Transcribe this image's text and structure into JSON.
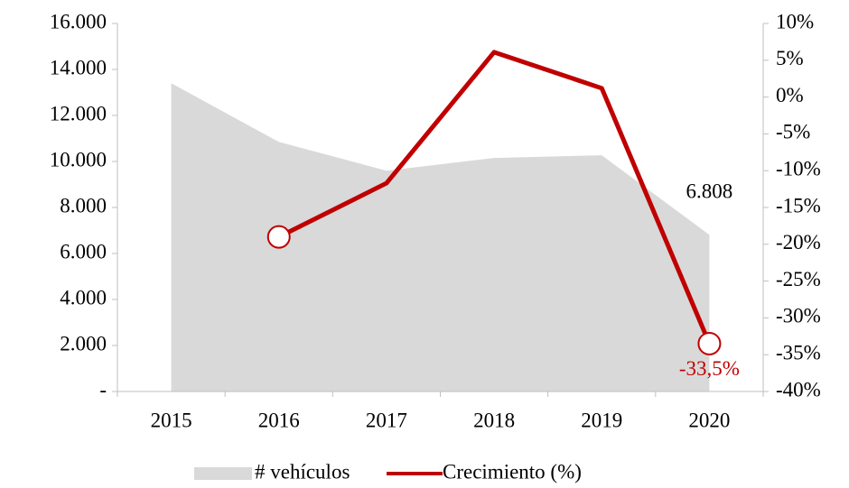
{
  "chart_data": {
    "type": "combo",
    "categories": [
      "2015",
      "2016",
      "2017",
      "2018",
      "2019",
      "2020"
    ],
    "series": [
      {
        "name": "# vehículos",
        "type": "area",
        "color": "#d9d9d9",
        "values": [
          13400,
          10850,
          9600,
          10150,
          10270,
          6808
        ],
        "value_labels": [
          null,
          null,
          null,
          null,
          null,
          "6.808"
        ]
      },
      {
        "name": "Crecimiento (%)",
        "type": "line",
        "axis": "y2",
        "color": "#c00000",
        "values": [
          null,
          -19,
          -11.7,
          6.1,
          1.2,
          -33.5
        ],
        "markers": [
          false,
          true,
          false,
          false,
          false,
          true
        ],
        "value_labels": [
          null,
          null,
          null,
          null,
          null,
          "-33,5%"
        ]
      }
    ],
    "ylim": [
      0,
      16000
    ],
    "yticks": [
      {
        "value": 0,
        "label": "-"
      },
      {
        "value": 2000,
        "label": "2.000"
      },
      {
        "value": 4000,
        "label": "4.000"
      },
      {
        "value": 6000,
        "label": "6.000"
      },
      {
        "value": 8000,
        "label": "8.000"
      },
      {
        "value": 10000,
        "label": "10.000"
      },
      {
        "value": 12000,
        "label": "12.000"
      },
      {
        "value": 14000,
        "label": "14.000"
      },
      {
        "value": 16000,
        "label": "16.000"
      }
    ],
    "y2lim": [
      -40,
      10
    ],
    "y2ticks": [
      {
        "value": -40,
        "label": "-40%"
      },
      {
        "value": -35,
        "label": "-35%"
      },
      {
        "value": -30,
        "label": "-30%"
      },
      {
        "value": -25,
        "label": "-25%"
      },
      {
        "value": -20,
        "label": "-20%"
      },
      {
        "value": -15,
        "label": "-15%"
      },
      {
        "value": -10,
        "label": "-10%"
      },
      {
        "value": -5,
        "label": "-5%"
      },
      {
        "value": 0,
        "label": "0%"
      },
      {
        "value": 5,
        "label": "5%"
      },
      {
        "value": 10,
        "label": "10%"
      }
    ],
    "legend": "bottom"
  }
}
